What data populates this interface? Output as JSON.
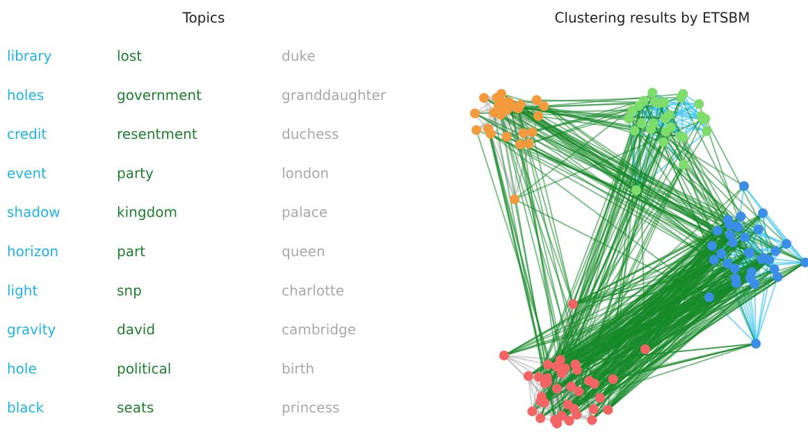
{
  "topics": {
    "title": "Topics",
    "columns": [
      [
        "library",
        "holes",
        "credit",
        "event",
        "shadow",
        "horizon",
        "light",
        "gravity",
        "hole",
        "black"
      ],
      [
        "lost",
        "government",
        "resentment",
        "party",
        "kingdom",
        "part",
        "snp",
        "david",
        "political",
        "seats"
      ],
      [
        "duke",
        "granddaughter",
        "duchess",
        "london",
        "palace",
        "queen",
        "charlotte",
        "cambridge",
        "birth",
        "princess"
      ]
    ]
  },
  "graph": {
    "title": "Clustering results by ETSBM"
  }
}
